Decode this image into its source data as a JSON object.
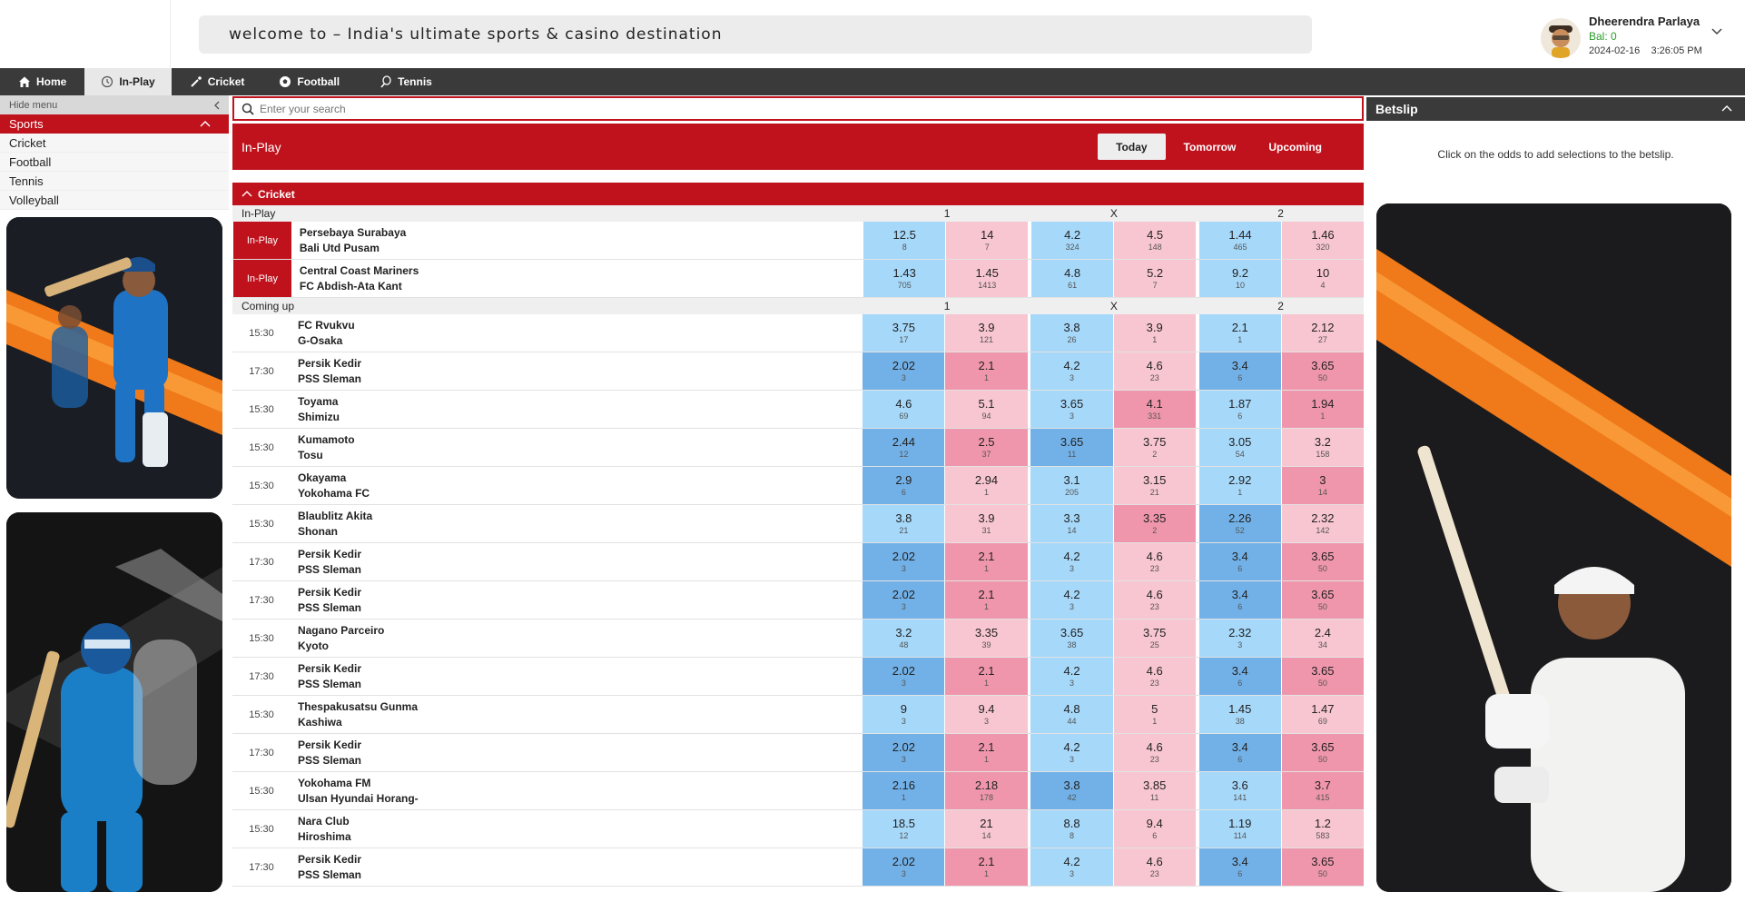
{
  "marquee": "welcome to – India's ultimate sports & casino destination",
  "user": {
    "name": "Dheerendra Parlaya",
    "balance": "Bal: 0",
    "datetime": "2024-02-16    3:26:05 PM"
  },
  "nav": [
    {
      "label": "Home",
      "icon": "home-icon"
    },
    {
      "label": "In-Play",
      "icon": "clock-icon",
      "active": true
    },
    {
      "label": "Cricket",
      "icon": "cricket-icon"
    },
    {
      "label": "Football",
      "icon": "football-icon"
    },
    {
      "label": "Tennis",
      "icon": "tennis-icon"
    }
  ],
  "sidebar": {
    "hide_menu": "Hide menu",
    "sports": "Sports",
    "items": [
      "Cricket",
      "Football",
      "Tennis",
      "Volleyball"
    ]
  },
  "search": {
    "placeholder": "Enter your search"
  },
  "inplay": {
    "title": "In-Play",
    "tabs": [
      "Today",
      "Tomorrow",
      "Upcoming"
    ],
    "active_tab": "Today"
  },
  "cricket_section": "Cricket",
  "col_headers": [
    "1",
    "X",
    "2"
  ],
  "sections": [
    {
      "label": "In-Play",
      "rows": [
        {
          "time": "In-Play",
          "live": true,
          "team1": "Persebaya Surabaya",
          "team2": "Bali Utd Pusam",
          "tone": "light",
          "odds": [
            [
              "12.5",
              "8"
            ],
            [
              "14",
              "7"
            ],
            [
              "4.2",
              "324"
            ],
            [
              "4.5",
              "148"
            ],
            [
              "1.44",
              "465"
            ],
            [
              "1.46",
              "320"
            ]
          ]
        },
        {
          "time": "In-Play",
          "live": true,
          "team1": "Central Coast Mariners",
          "team2": "FC Abdish-Ata Kant",
          "tone": "light",
          "odds": [
            [
              "1.43",
              "705"
            ],
            [
              "1.45",
              "1413"
            ],
            [
              "4.8",
              "61"
            ],
            [
              "5.2",
              "7"
            ],
            [
              "9.2",
              "10"
            ],
            [
              "10",
              "4"
            ]
          ]
        }
      ]
    },
    {
      "label": "Coming up",
      "rows": [
        {
          "time": "15:30",
          "team1": "FC Rvukvu",
          "team2": "G-Osaka",
          "tone": "light",
          "odds": [
            [
              "3.75",
              "17"
            ],
            [
              "3.9",
              "121"
            ],
            [
              "3.8",
              "26"
            ],
            [
              "3.9",
              "1"
            ],
            [
              "2.1",
              "1"
            ],
            [
              "2.12",
              "27"
            ]
          ]
        },
        {
          "time": "17:30",
          "team1": "Persik Kedir",
          "team2": "PSS Sleman",
          "tone": "mixA",
          "odds": [
            [
              "2.02",
              "3"
            ],
            [
              "2.1",
              "1"
            ],
            [
              "4.2",
              "3"
            ],
            [
              "4.6",
              "23"
            ],
            [
              "3.4",
              "6"
            ],
            [
              "3.65",
              "50"
            ]
          ]
        },
        {
          "time": "15:30",
          "team1": "Toyama",
          "team2": "Shimizu",
          "tone": "mixB",
          "odds": [
            [
              "4.6",
              "69"
            ],
            [
              "5.1",
              "94"
            ],
            [
              "3.65",
              "3"
            ],
            [
              "4.1",
              "331"
            ],
            [
              "1.87",
              "6"
            ],
            [
              "1.94",
              "1"
            ]
          ]
        },
        {
          "time": "15:30",
          "team1": "Kumamoto",
          "team2": "Tosu",
          "tone": "mixC",
          "odds": [
            [
              "2.44",
              "12"
            ],
            [
              "2.5",
              "37"
            ],
            [
              "3.65",
              "11"
            ],
            [
              "3.75",
              "2"
            ],
            [
              "3.05",
              "54"
            ],
            [
              "3.2",
              "158"
            ]
          ]
        },
        {
          "time": "15:30",
          "team1": "Okayama",
          "team2": "Yokohama FC",
          "tone": "mixD",
          "odds": [
            [
              "2.9",
              "6"
            ],
            [
              "2.94",
              "1"
            ],
            [
              "3.1",
              "205"
            ],
            [
              "3.15",
              "21"
            ],
            [
              "2.92",
              "1"
            ],
            [
              "3",
              "14"
            ]
          ]
        },
        {
          "time": "15:30",
          "team1": "Blaublitz Akita",
          "team2": "Shonan",
          "tone": "mixE",
          "odds": [
            [
              "3.8",
              "21"
            ],
            [
              "3.9",
              "31"
            ],
            [
              "3.3",
              "14"
            ],
            [
              "3.35",
              "2"
            ],
            [
              "2.26",
              "52"
            ],
            [
              "2.32",
              "142"
            ]
          ]
        },
        {
          "time": "17:30",
          "team1": "Persik Kedir",
          "team2": "PSS Sleman",
          "tone": "mixA",
          "odds": [
            [
              "2.02",
              "3"
            ],
            [
              "2.1",
              "1"
            ],
            [
              "4.2",
              "3"
            ],
            [
              "4.6",
              "23"
            ],
            [
              "3.4",
              "6"
            ],
            [
              "3.65",
              "50"
            ]
          ]
        },
        {
          "time": "17:30",
          "team1": "Persik Kedir",
          "team2": "PSS Sleman",
          "tone": "mixA",
          "odds": [
            [
              "2.02",
              "3"
            ],
            [
              "2.1",
              "1"
            ],
            [
              "4.2",
              "3"
            ],
            [
              "4.6",
              "23"
            ],
            [
              "3.4",
              "6"
            ],
            [
              "3.65",
              "50"
            ]
          ]
        },
        {
          "time": "15:30",
          "team1": "Nagano Parceiro",
          "team2": "Kyoto",
          "tone": "light",
          "odds": [
            [
              "3.2",
              "48"
            ],
            [
              "3.35",
              "39"
            ],
            [
              "3.65",
              "38"
            ],
            [
              "3.75",
              "25"
            ],
            [
              "2.32",
              "3"
            ],
            [
              "2.4",
              "34"
            ]
          ]
        },
        {
          "time": "17:30",
          "team1": "Persik Kedir",
          "team2": "PSS Sleman",
          "tone": "mixA",
          "odds": [
            [
              "2.02",
              "3"
            ],
            [
              "2.1",
              "1"
            ],
            [
              "4.2",
              "3"
            ],
            [
              "4.6",
              "23"
            ],
            [
              "3.4",
              "6"
            ],
            [
              "3.65",
              "50"
            ]
          ]
        },
        {
          "time": "15:30",
          "team1": "Thespakusatsu Gunma",
          "team2": "Kashiwa",
          "tone": "light",
          "odds": [
            [
              "9",
              "3"
            ],
            [
              "9.4",
              "3"
            ],
            [
              "4.8",
              "44"
            ],
            [
              "5",
              "1"
            ],
            [
              "1.45",
              "38"
            ],
            [
              "1.47",
              "69"
            ]
          ]
        },
        {
          "time": "17:30",
          "team1": "Persik Kedir",
          "team2": "PSS Sleman",
          "tone": "mixA",
          "odds": [
            [
              "2.02",
              "3"
            ],
            [
              "2.1",
              "1"
            ],
            [
              "4.2",
              "3"
            ],
            [
              "4.6",
              "23"
            ],
            [
              "3.4",
              "6"
            ],
            [
              "3.65",
              "50"
            ]
          ]
        },
        {
          "time": "15:30",
          "team1": "Yokohama FM",
          "team2": "Ulsan Hyundai Horang-",
          "tone": "mixF",
          "odds": [
            [
              "2.16",
              "1"
            ],
            [
              "2.18",
              "178"
            ],
            [
              "3.8",
              "42"
            ],
            [
              "3.85",
              "11"
            ],
            [
              "3.6",
              "141"
            ],
            [
              "3.7",
              "415"
            ]
          ]
        },
        {
          "time": "15:30",
          "team1": "Nara Club",
          "team2": "Hiroshima",
          "tone": "light",
          "odds": [
            [
              "18.5",
              "12"
            ],
            [
              "21",
              "14"
            ],
            [
              "8.8",
              "8"
            ],
            [
              "9.4",
              "6"
            ],
            [
              "1.19",
              "114"
            ],
            [
              "1.2",
              "583"
            ]
          ]
        },
        {
          "time": "17:30",
          "team1": "Persik Kedir",
          "team2": "PSS Sleman",
          "tone": "mixA",
          "odds": [
            [
              "2.02",
              "3"
            ],
            [
              "2.1",
              "1"
            ],
            [
              "4.2",
              "3"
            ],
            [
              "4.6",
              "23"
            ],
            [
              "3.4",
              "6"
            ],
            [
              "3.65",
              "50"
            ]
          ]
        }
      ]
    }
  ],
  "betslip": {
    "title": "Betslip",
    "message": "Click on the odds to add selections to the betslip."
  },
  "colors": {
    "brand_red": "#c0121d",
    "back": "#a6d8fa",
    "lay": "#f8c6d0",
    "back_dark": "#72b1e8",
    "lay_dark": "#f096ac",
    "nav_bg": "#3a3a3a"
  }
}
